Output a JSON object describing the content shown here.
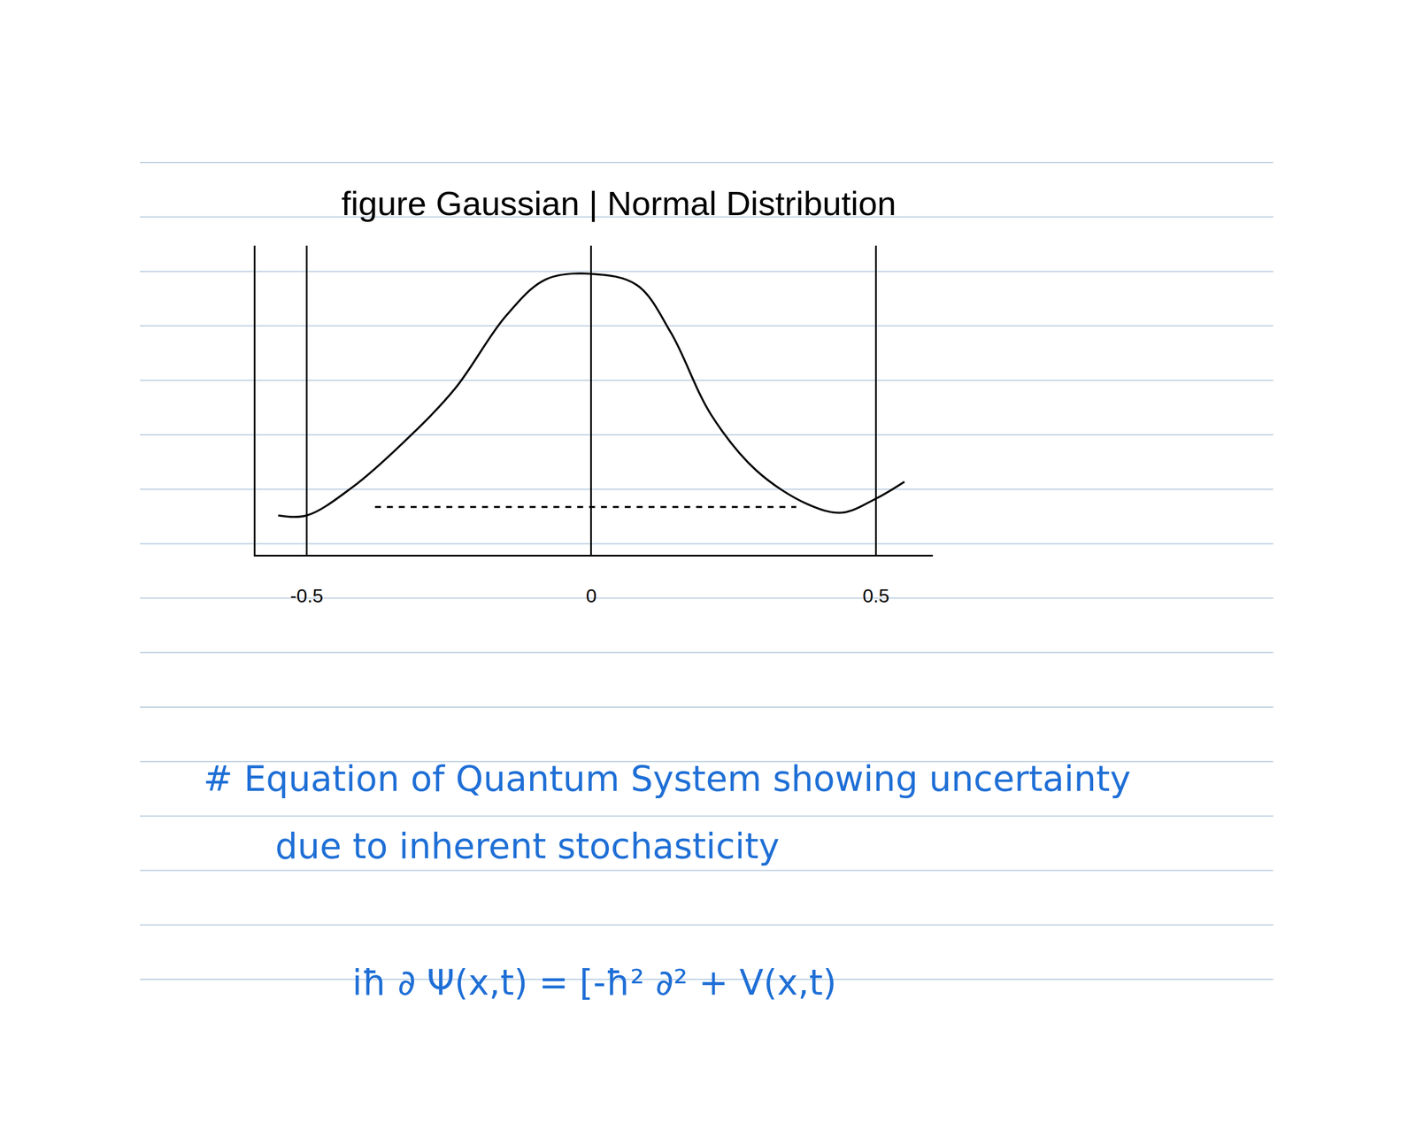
{
  "chart_data": {
    "type": "line",
    "title": "figure Gaussian | Normal Distribution",
    "series": [
      {
        "color": "#000000",
        "line_style": "solid",
        "x": [
          -0.55,
          -0.5,
          -0.42,
          -0.33,
          -0.24,
          -0.15,
          -0.08,
          0,
          0.08,
          0.14,
          0.21,
          0.29,
          0.38,
          0.44,
          0.5,
          0.55
        ],
        "values": [
          0.14,
          0.14,
          0.24,
          0.4,
          0.59,
          0.85,
          0.98,
          1.0,
          0.96,
          0.79,
          0.5,
          0.3,
          0.18,
          0.15,
          0.2,
          0.26
        ]
      },
      {
        "color": "#000000",
        "line_style": "dashed",
        "x": [
          -0.38,
          0.36
        ],
        "values": [
          0.17,
          0.17
        ]
      }
    ],
    "xlim": [
      -0.59,
      0.6
    ],
    "xticks": [
      -0.5,
      0,
      0.5
    ],
    "ylim": [
      0,
      1.1
    ],
    "yticks": [],
    "grid": true,
    "tick_labels": "x"
  },
  "notes": {
    "heading": "# Equation of Quantum System showing uncertainty",
    "heading_line2": "due to inherent stochasticity",
    "equation": "iħ ∂ Ψ(x,t) = [-ħ² ∂² + V(x,t)"
  }
}
